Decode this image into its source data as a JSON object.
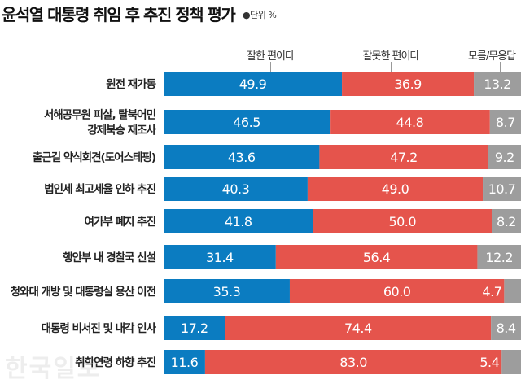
{
  "chart_data": {
    "type": "bar",
    "orientation": "horizontal",
    "stacked": true,
    "title": "윤석열 대통령 취임 후 추진 정책 평가",
    "unit": "●단위 %",
    "categories": [
      [
        "원전 재가동"
      ],
      [
        "서해공무원 피살, 탈북어민",
        "강제북송 재조사"
      ],
      [
        "출근길 약식회견(도어스테핑)"
      ],
      [
        "법인세 최고세율 인하 추진"
      ],
      [
        "여가부 폐지 추진"
      ],
      [
        "행안부 내 경찰국 신설"
      ],
      [
        "청와대 개방 및 대통령실 용산 이전"
      ],
      [
        "대통령 비서진 및 내각 인사"
      ],
      [
        "취학연령 하향 추진"
      ]
    ],
    "series": [
      {
        "name": "잘한 편이다",
        "color": "#0b7cc1",
        "values": [
          49.9,
          46.5,
          43.6,
          40.3,
          41.8,
          31.4,
          35.3,
          17.2,
          11.6
        ]
      },
      {
        "name": "잘못한 편이다",
        "color": "#e5544c",
        "values": [
          36.9,
          44.8,
          47.2,
          49.0,
          50.0,
          56.4,
          60.0,
          74.4,
          83.0
        ]
      },
      {
        "name": "모름/무응답",
        "color": "#9d9d9d",
        "values": [
          13.2,
          8.7,
          9.2,
          10.7,
          8.2,
          12.2,
          4.7,
          8.4,
          5.4
        ]
      }
    ],
    "xlim": [
      0,
      100
    ],
    "legend": "top"
  },
  "watermark": "한국일보"
}
